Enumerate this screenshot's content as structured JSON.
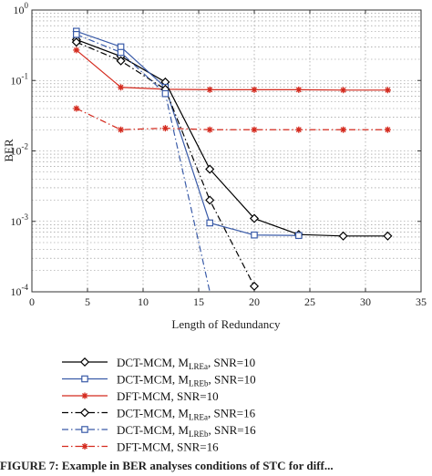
{
  "chart_data": {
    "type": "line",
    "xlabel": "Length of Redundancy",
    "ylabel": "BER",
    "xlim": [
      0,
      35
    ],
    "ylim": [
      0.0001,
      1
    ],
    "yscale": "log",
    "xticks": [
      "0",
      "5",
      "10",
      "15",
      "20",
      "25",
      "30",
      "35"
    ],
    "yticks": [
      {
        "value": 1,
        "base": "10",
        "exp": "0"
      },
      {
        "value": 0.1,
        "base": "10",
        "exp": "-1"
      },
      {
        "value": 0.01,
        "base": "10",
        "exp": "-2"
      },
      {
        "value": 0.001,
        "base": "10",
        "exp": "-3"
      },
      {
        "value": 0.0001,
        "base": "10",
        "exp": "-4"
      }
    ],
    "grid": true,
    "legend_position": "below",
    "series": [
      {
        "label_main": "DCT-MCM, M",
        "label_sub": "LREa",
        "label_tail": ", SNR=10",
        "color": "#000000",
        "marker": "diamond",
        "dash": "solid",
        "x": [
          4,
          8,
          12,
          16,
          20,
          24,
          28,
          32
        ],
        "y": [
          0.38,
          0.22,
          0.095,
          0.0055,
          0.0011,
          0.00065,
          0.00062,
          0.00062
        ]
      },
      {
        "label_main": "DCT-MCM, M",
        "label_sub": "LREb",
        "label_tail": ", SNR=10",
        "color": "#3a5ba8",
        "marker": "square",
        "dash": "solid",
        "x": [
          4,
          8,
          12,
          16,
          20,
          24
        ],
        "y": [
          0.5,
          0.3,
          0.08,
          0.00095,
          0.00064,
          0.00063
        ]
      },
      {
        "label_main": "DFT-MCM, SNR=10",
        "label_sub": "",
        "label_tail": "",
        "color": "#d42a1e",
        "marker": "star",
        "dash": "solid",
        "x": [
          4,
          8,
          12,
          16,
          20,
          24,
          28,
          32
        ],
        "y": [
          0.27,
          0.08,
          0.075,
          0.074,
          0.074,
          0.074,
          0.073,
          0.073
        ]
      },
      {
        "label_main": "DCT-MCM, M",
        "label_sub": "LREa",
        "label_tail": ", SNR=16",
        "color": "#000000",
        "marker": "diamond",
        "dash": "dashdot",
        "x": [
          4,
          8,
          12,
          16,
          20
        ],
        "y": [
          0.35,
          0.19,
          0.075,
          0.002,
          0.00012
        ]
      },
      {
        "label_main": "DCT-MCM, M",
        "label_sub": "LREb",
        "label_tail": ", SNR=16",
        "color": "#3a5ba8",
        "marker": "square",
        "dash": "dashdot",
        "x": [
          4,
          8,
          12,
          16
        ],
        "y": [
          0.45,
          0.25,
          0.065,
          0.0001
        ]
      },
      {
        "label_main": "DFT-MCM, SNR=16",
        "label_sub": "",
        "label_tail": "",
        "color": "#d42a1e",
        "marker": "star",
        "dash": "dashdot",
        "x": [
          4,
          8,
          12,
          16,
          20,
          24,
          28,
          32
        ],
        "y": [
          0.04,
          0.02,
          0.021,
          0.02,
          0.02,
          0.02,
          0.02,
          0.02
        ]
      }
    ]
  },
  "caption": "FIGURE 7: Example in BER analyses conditions of STC for diff..."
}
